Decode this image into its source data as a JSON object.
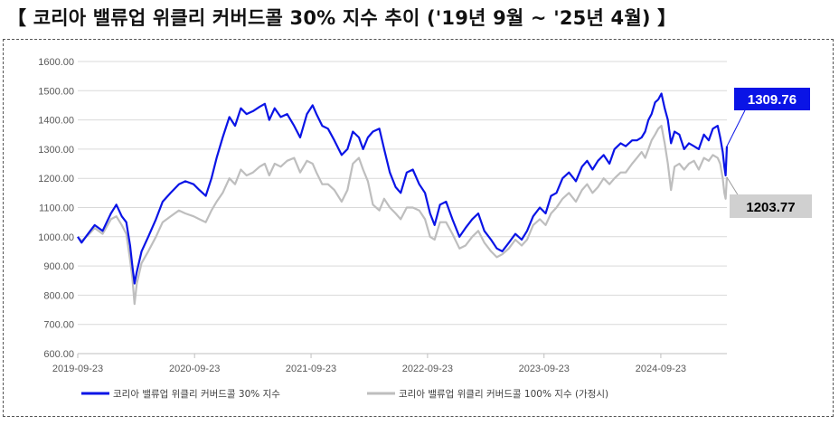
{
  "page": {
    "title": "【 코리아 밸류업 위클리 커버드콜 30% 지수 추이 ('19년 9월 ~ '25년 4월) 】"
  },
  "chart_data": {
    "type": "line",
    "title": "",
    "xlabel": "",
    "ylabel": "",
    "ylim": [
      600,
      1600
    ],
    "y_ticks": [
      "1600.00",
      "1500.00",
      "1400.00",
      "1300.00",
      "1200.00",
      "1100.00",
      "1000.00",
      "900.00",
      "800.00",
      "700.00",
      "600.00"
    ],
    "x_ticks": [
      "2019-09-23",
      "2020-09-23",
      "2021-09-23",
      "2022-09-23",
      "2023-09-23",
      "2024-09-23"
    ],
    "x_range": [
      "2019-09-23",
      "2025-04-18"
    ],
    "grid": "horizontal",
    "legend_position": "bottom",
    "colors": {
      "series1": "#0A14E6",
      "series2": "#BEBEBE",
      "grid": "#D9D9D9",
      "axis": "#BFBFBF",
      "callout1_bg": "#0A14E6",
      "callout2_bg": "#D0D0D0"
    },
    "series": [
      {
        "name": "코리아 밸류업 위클리 커버드콜 30% 지수",
        "points": [
          [
            "2019-09-23",
            1000
          ],
          [
            "2019-10-05",
            980
          ],
          [
            "2019-10-25",
            1010
          ],
          [
            "2019-11-15",
            1040
          ],
          [
            "2019-12-10",
            1020
          ],
          [
            "2020-01-05",
            1080
          ],
          [
            "2020-01-22",
            1110
          ],
          [
            "2020-02-08",
            1070
          ],
          [
            "2020-02-22",
            1050
          ],
          [
            "2020-03-05",
            970
          ],
          [
            "2020-03-12",
            900
          ],
          [
            "2020-03-19",
            840
          ],
          [
            "2020-03-26",
            880
          ],
          [
            "2020-04-10",
            950
          ],
          [
            "2020-05-01",
            1000
          ],
          [
            "2020-05-25",
            1060
          ],
          [
            "2020-06-15",
            1120
          ],
          [
            "2020-07-10",
            1150
          ],
          [
            "2020-08-05",
            1180
          ],
          [
            "2020-08-25",
            1190
          ],
          [
            "2020-09-20",
            1180
          ],
          [
            "2020-10-08",
            1160
          ],
          [
            "2020-10-28",
            1140
          ],
          [
            "2020-11-15",
            1200
          ],
          [
            "2020-12-01",
            1270
          ],
          [
            "2020-12-20",
            1340
          ],
          [
            "2021-01-10",
            1410
          ],
          [
            "2021-01-28",
            1380
          ],
          [
            "2021-02-15",
            1440
          ],
          [
            "2021-03-05",
            1420
          ],
          [
            "2021-03-25",
            1430
          ],
          [
            "2021-04-15",
            1445
          ],
          [
            "2021-05-01",
            1455
          ],
          [
            "2021-05-15",
            1400
          ],
          [
            "2021-06-01",
            1440
          ],
          [
            "2021-06-20",
            1410
          ],
          [
            "2021-07-10",
            1420
          ],
          [
            "2021-08-01",
            1380
          ],
          [
            "2021-08-20",
            1340
          ],
          [
            "2021-09-10",
            1420
          ],
          [
            "2021-09-28",
            1450
          ],
          [
            "2021-10-10",
            1420
          ],
          [
            "2021-10-28",
            1380
          ],
          [
            "2021-11-15",
            1370
          ],
          [
            "2021-12-05",
            1330
          ],
          [
            "2021-12-28",
            1280
          ],
          [
            "2022-01-15",
            1300
          ],
          [
            "2022-02-01",
            1360
          ],
          [
            "2022-02-20",
            1340
          ],
          [
            "2022-03-05",
            1300
          ],
          [
            "2022-03-20",
            1340
          ],
          [
            "2022-04-05",
            1360
          ],
          [
            "2022-04-25",
            1370
          ],
          [
            "2022-05-10",
            1300
          ],
          [
            "2022-05-28",
            1220
          ],
          [
            "2022-06-15",
            1170
          ],
          [
            "2022-07-01",
            1150
          ],
          [
            "2022-07-20",
            1220
          ],
          [
            "2022-08-08",
            1230
          ],
          [
            "2022-08-28",
            1180
          ],
          [
            "2022-09-15",
            1150
          ],
          [
            "2022-10-01",
            1080
          ],
          [
            "2022-10-15",
            1040
          ],
          [
            "2022-11-01",
            1110
          ],
          [
            "2022-11-20",
            1120
          ],
          [
            "2022-12-10",
            1060
          ],
          [
            "2023-01-01",
            1000
          ],
          [
            "2023-01-20",
            1030
          ],
          [
            "2023-02-10",
            1060
          ],
          [
            "2023-03-01",
            1080
          ],
          [
            "2023-03-20",
            1020
          ],
          [
            "2023-04-10",
            990
          ],
          [
            "2023-04-28",
            960
          ],
          [
            "2023-05-15",
            950
          ],
          [
            "2023-06-05",
            980
          ],
          [
            "2023-06-25",
            1010
          ],
          [
            "2023-07-15",
            990
          ],
          [
            "2023-08-01",
            1020
          ],
          [
            "2023-08-20",
            1070
          ],
          [
            "2023-09-10",
            1100
          ],
          [
            "2023-09-28",
            1080
          ],
          [
            "2023-10-15",
            1140
          ],
          [
            "2023-11-01",
            1150
          ],
          [
            "2023-11-20",
            1200
          ],
          [
            "2023-12-10",
            1220
          ],
          [
            "2024-01-01",
            1190
          ],
          [
            "2024-01-20",
            1240
          ],
          [
            "2024-02-05",
            1260
          ],
          [
            "2024-02-22",
            1230
          ],
          [
            "2024-03-10",
            1260
          ],
          [
            "2024-03-28",
            1280
          ],
          [
            "2024-04-15",
            1250
          ],
          [
            "2024-05-01",
            1300
          ],
          [
            "2024-05-20",
            1320
          ],
          [
            "2024-06-05",
            1310
          ],
          [
            "2024-06-25",
            1330
          ],
          [
            "2024-07-10",
            1330
          ],
          [
            "2024-07-25",
            1340
          ],
          [
            "2024-08-05",
            1360
          ],
          [
            "2024-08-15",
            1400
          ],
          [
            "2024-08-25",
            1420
          ],
          [
            "2024-09-05",
            1460
          ],
          [
            "2024-09-15",
            1470
          ],
          [
            "2024-09-25",
            1490
          ],
          [
            "2024-10-05",
            1440
          ],
          [
            "2024-10-15",
            1400
          ],
          [
            "2024-10-25",
            1320
          ],
          [
            "2024-11-05",
            1360
          ],
          [
            "2024-11-20",
            1350
          ],
          [
            "2024-12-05",
            1300
          ],
          [
            "2024-12-20",
            1320
          ],
          [
            "2025-01-05",
            1310
          ],
          [
            "2025-01-20",
            1300
          ],
          [
            "2025-02-05",
            1350
          ],
          [
            "2025-02-20",
            1330
          ],
          [
            "2025-03-05",
            1370
          ],
          [
            "2025-03-20",
            1380
          ],
          [
            "2025-03-28",
            1340
          ],
          [
            "2025-04-05",
            1290
          ],
          [
            "2025-04-10",
            1240
          ],
          [
            "2025-04-14",
            1210
          ],
          [
            "2025-04-18",
            1309.76
          ]
        ],
        "last_value": "1309.76"
      },
      {
        "name": "코리아 밸류업 위클리 커버드콜 100% 지수 (가정시)",
        "points": [
          [
            "2019-09-23",
            1000
          ],
          [
            "2019-10-05",
            985
          ],
          [
            "2019-10-25",
            1005
          ],
          [
            "2019-11-15",
            1030
          ],
          [
            "2019-12-10",
            1010
          ],
          [
            "2020-01-05",
            1060
          ],
          [
            "2020-01-22",
            1070
          ],
          [
            "2020-02-08",
            1040
          ],
          [
            "2020-02-22",
            1010
          ],
          [
            "2020-03-05",
            920
          ],
          [
            "2020-03-12",
            860
          ],
          [
            "2020-03-19",
            770
          ],
          [
            "2020-03-26",
            840
          ],
          [
            "2020-04-10",
            910
          ],
          [
            "2020-05-01",
            950
          ],
          [
            "2020-05-25",
            1000
          ],
          [
            "2020-06-15",
            1050
          ],
          [
            "2020-07-10",
            1070
          ],
          [
            "2020-08-05",
            1090
          ],
          [
            "2020-08-25",
            1080
          ],
          [
            "2020-09-20",
            1070
          ],
          [
            "2020-10-08",
            1060
          ],
          [
            "2020-10-28",
            1050
          ],
          [
            "2020-11-15",
            1090
          ],
          [
            "2020-12-01",
            1120
          ],
          [
            "2020-12-20",
            1150
          ],
          [
            "2021-01-10",
            1200
          ],
          [
            "2021-01-28",
            1180
          ],
          [
            "2021-02-15",
            1230
          ],
          [
            "2021-03-05",
            1210
          ],
          [
            "2021-03-25",
            1220
          ],
          [
            "2021-04-15",
            1240
          ],
          [
            "2021-05-01",
            1250
          ],
          [
            "2021-05-15",
            1210
          ],
          [
            "2021-06-01",
            1250
          ],
          [
            "2021-06-20",
            1240
          ],
          [
            "2021-07-10",
            1260
          ],
          [
            "2021-08-01",
            1270
          ],
          [
            "2021-08-20",
            1220
          ],
          [
            "2021-09-10",
            1260
          ],
          [
            "2021-09-28",
            1250
          ],
          [
            "2021-10-10",
            1220
          ],
          [
            "2021-10-28",
            1180
          ],
          [
            "2021-11-15",
            1180
          ],
          [
            "2021-12-05",
            1160
          ],
          [
            "2021-12-28",
            1120
          ],
          [
            "2022-01-15",
            1160
          ],
          [
            "2022-02-01",
            1250
          ],
          [
            "2022-02-20",
            1270
          ],
          [
            "2022-03-05",
            1230
          ],
          [
            "2022-03-20",
            1190
          ],
          [
            "2022-04-05",
            1110
          ],
          [
            "2022-04-25",
            1090
          ],
          [
            "2022-05-10",
            1130
          ],
          [
            "2022-05-28",
            1100
          ],
          [
            "2022-06-15",
            1080
          ],
          [
            "2022-07-01",
            1060
          ],
          [
            "2022-07-20",
            1100
          ],
          [
            "2022-08-08",
            1100
          ],
          [
            "2022-08-28",
            1090
          ],
          [
            "2022-09-15",
            1060
          ],
          [
            "2022-10-01",
            1000
          ],
          [
            "2022-10-15",
            990
          ],
          [
            "2022-11-01",
            1050
          ],
          [
            "2022-11-20",
            1050
          ],
          [
            "2022-12-10",
            1010
          ],
          [
            "2023-01-01",
            960
          ],
          [
            "2023-01-20",
            970
          ],
          [
            "2023-02-10",
            1000
          ],
          [
            "2023-03-01",
            1020
          ],
          [
            "2023-03-20",
            980
          ],
          [
            "2023-04-10",
            950
          ],
          [
            "2023-04-28",
            930
          ],
          [
            "2023-05-15",
            940
          ],
          [
            "2023-06-05",
            960
          ],
          [
            "2023-06-25",
            990
          ],
          [
            "2023-07-15",
            970
          ],
          [
            "2023-08-01",
            990
          ],
          [
            "2023-08-20",
            1040
          ],
          [
            "2023-09-10",
            1060
          ],
          [
            "2023-09-28",
            1040
          ],
          [
            "2023-10-15",
            1080
          ],
          [
            "2023-11-01",
            1100
          ],
          [
            "2023-11-20",
            1130
          ],
          [
            "2023-12-10",
            1150
          ],
          [
            "2024-01-01",
            1120
          ],
          [
            "2024-01-20",
            1160
          ],
          [
            "2024-02-05",
            1180
          ],
          [
            "2024-02-22",
            1150
          ],
          [
            "2024-03-10",
            1170
          ],
          [
            "2024-03-28",
            1200
          ],
          [
            "2024-04-15",
            1180
          ],
          [
            "2024-05-01",
            1200
          ],
          [
            "2024-05-20",
            1220
          ],
          [
            "2024-06-05",
            1220
          ],
          [
            "2024-06-25",
            1250
          ],
          [
            "2024-07-10",
            1270
          ],
          [
            "2024-07-25",
            1290
          ],
          [
            "2024-08-05",
            1270
          ],
          [
            "2024-08-15",
            1300
          ],
          [
            "2024-08-25",
            1330
          ],
          [
            "2024-09-05",
            1350
          ],
          [
            "2024-09-15",
            1370
          ],
          [
            "2024-09-25",
            1380
          ],
          [
            "2024-10-05",
            1320
          ],
          [
            "2024-10-15",
            1250
          ],
          [
            "2024-10-25",
            1160
          ],
          [
            "2024-11-05",
            1240
          ],
          [
            "2024-11-20",
            1250
          ],
          [
            "2024-12-05",
            1230
          ],
          [
            "2024-12-20",
            1250
          ],
          [
            "2025-01-05",
            1260
          ],
          [
            "2025-01-20",
            1230
          ],
          [
            "2025-02-05",
            1270
          ],
          [
            "2025-02-20",
            1260
          ],
          [
            "2025-03-05",
            1280
          ],
          [
            "2025-03-20",
            1270
          ],
          [
            "2025-03-28",
            1250
          ],
          [
            "2025-04-05",
            1200
          ],
          [
            "2025-04-10",
            1150
          ],
          [
            "2025-04-14",
            1130
          ],
          [
            "2025-04-18",
            1203.77
          ]
        ],
        "last_value": "1203.77"
      }
    ]
  }
}
